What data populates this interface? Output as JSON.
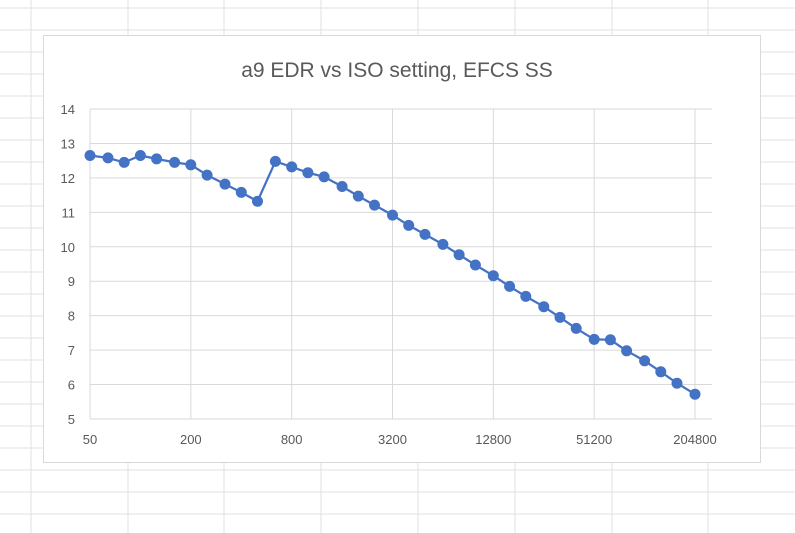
{
  "chart_data": {
    "type": "line",
    "title": "a9 EDR vs ISO setting, EFCS SS",
    "xlabel": "",
    "ylabel": "",
    "x_scale": "log2",
    "x_ticks": [
      50,
      200,
      800,
      3200,
      12800,
      51200,
      204800
    ],
    "x_tick_labels": [
      "50",
      "200",
      "800",
      "3200",
      "12800",
      "51200",
      "204800"
    ],
    "ylim": [
      5,
      14
    ],
    "y_ticks": [
      5,
      6,
      7,
      8,
      9,
      10,
      11,
      12,
      13,
      14
    ],
    "grid": true,
    "legend": "none",
    "series": [
      {
        "color": "#4472C4",
        "points": [
          {
            "x": 50,
            "y": 12.65
          },
          {
            "x": 64,
            "y": 12.58
          },
          {
            "x": 80,
            "y": 12.45
          },
          {
            "x": 100,
            "y": 12.65
          },
          {
            "x": 125,
            "y": 12.55
          },
          {
            "x": 160,
            "y": 12.45
          },
          {
            "x": 200,
            "y": 12.38
          },
          {
            "x": 250,
            "y": 12.08
          },
          {
            "x": 320,
            "y": 11.82
          },
          {
            "x": 400,
            "y": 11.58
          },
          {
            "x": 500,
            "y": 11.32
          },
          {
            "x": 640,
            "y": 12.48
          },
          {
            "x": 800,
            "y": 12.32
          },
          {
            "x": 1000,
            "y": 12.15
          },
          {
            "x": 1250,
            "y": 12.03
          },
          {
            "x": 1600,
            "y": 11.75
          },
          {
            "x": 2000,
            "y": 11.47
          },
          {
            "x": 2500,
            "y": 11.21
          },
          {
            "x": 3200,
            "y": 10.92
          },
          {
            "x": 4000,
            "y": 10.62
          },
          {
            "x": 5000,
            "y": 10.36
          },
          {
            "x": 6400,
            "y": 10.07
          },
          {
            "x": 8000,
            "y": 9.77
          },
          {
            "x": 10000,
            "y": 9.47
          },
          {
            "x": 12800,
            "y": 9.16
          },
          {
            "x": 16000,
            "y": 8.85
          },
          {
            "x": 20000,
            "y": 8.56
          },
          {
            "x": 25600,
            "y": 8.26
          },
          {
            "x": 32000,
            "y": 7.95
          },
          {
            "x": 40000,
            "y": 7.63
          },
          {
            "x": 51200,
            "y": 7.31
          },
          {
            "x": 64000,
            "y": 7.3
          },
          {
            "x": 80000,
            "y": 6.98
          },
          {
            "x": 102400,
            "y": 6.69
          },
          {
            "x": 128000,
            "y": 6.37
          },
          {
            "x": 160000,
            "y": 6.04
          },
          {
            "x": 204800,
            "y": 5.72
          }
        ]
      }
    ]
  },
  "colors": {
    "series_line": "#4472C4",
    "gridline": "#d9d9d9",
    "text": "#595959",
    "sheet_gridline": "#e1e1e1"
  }
}
